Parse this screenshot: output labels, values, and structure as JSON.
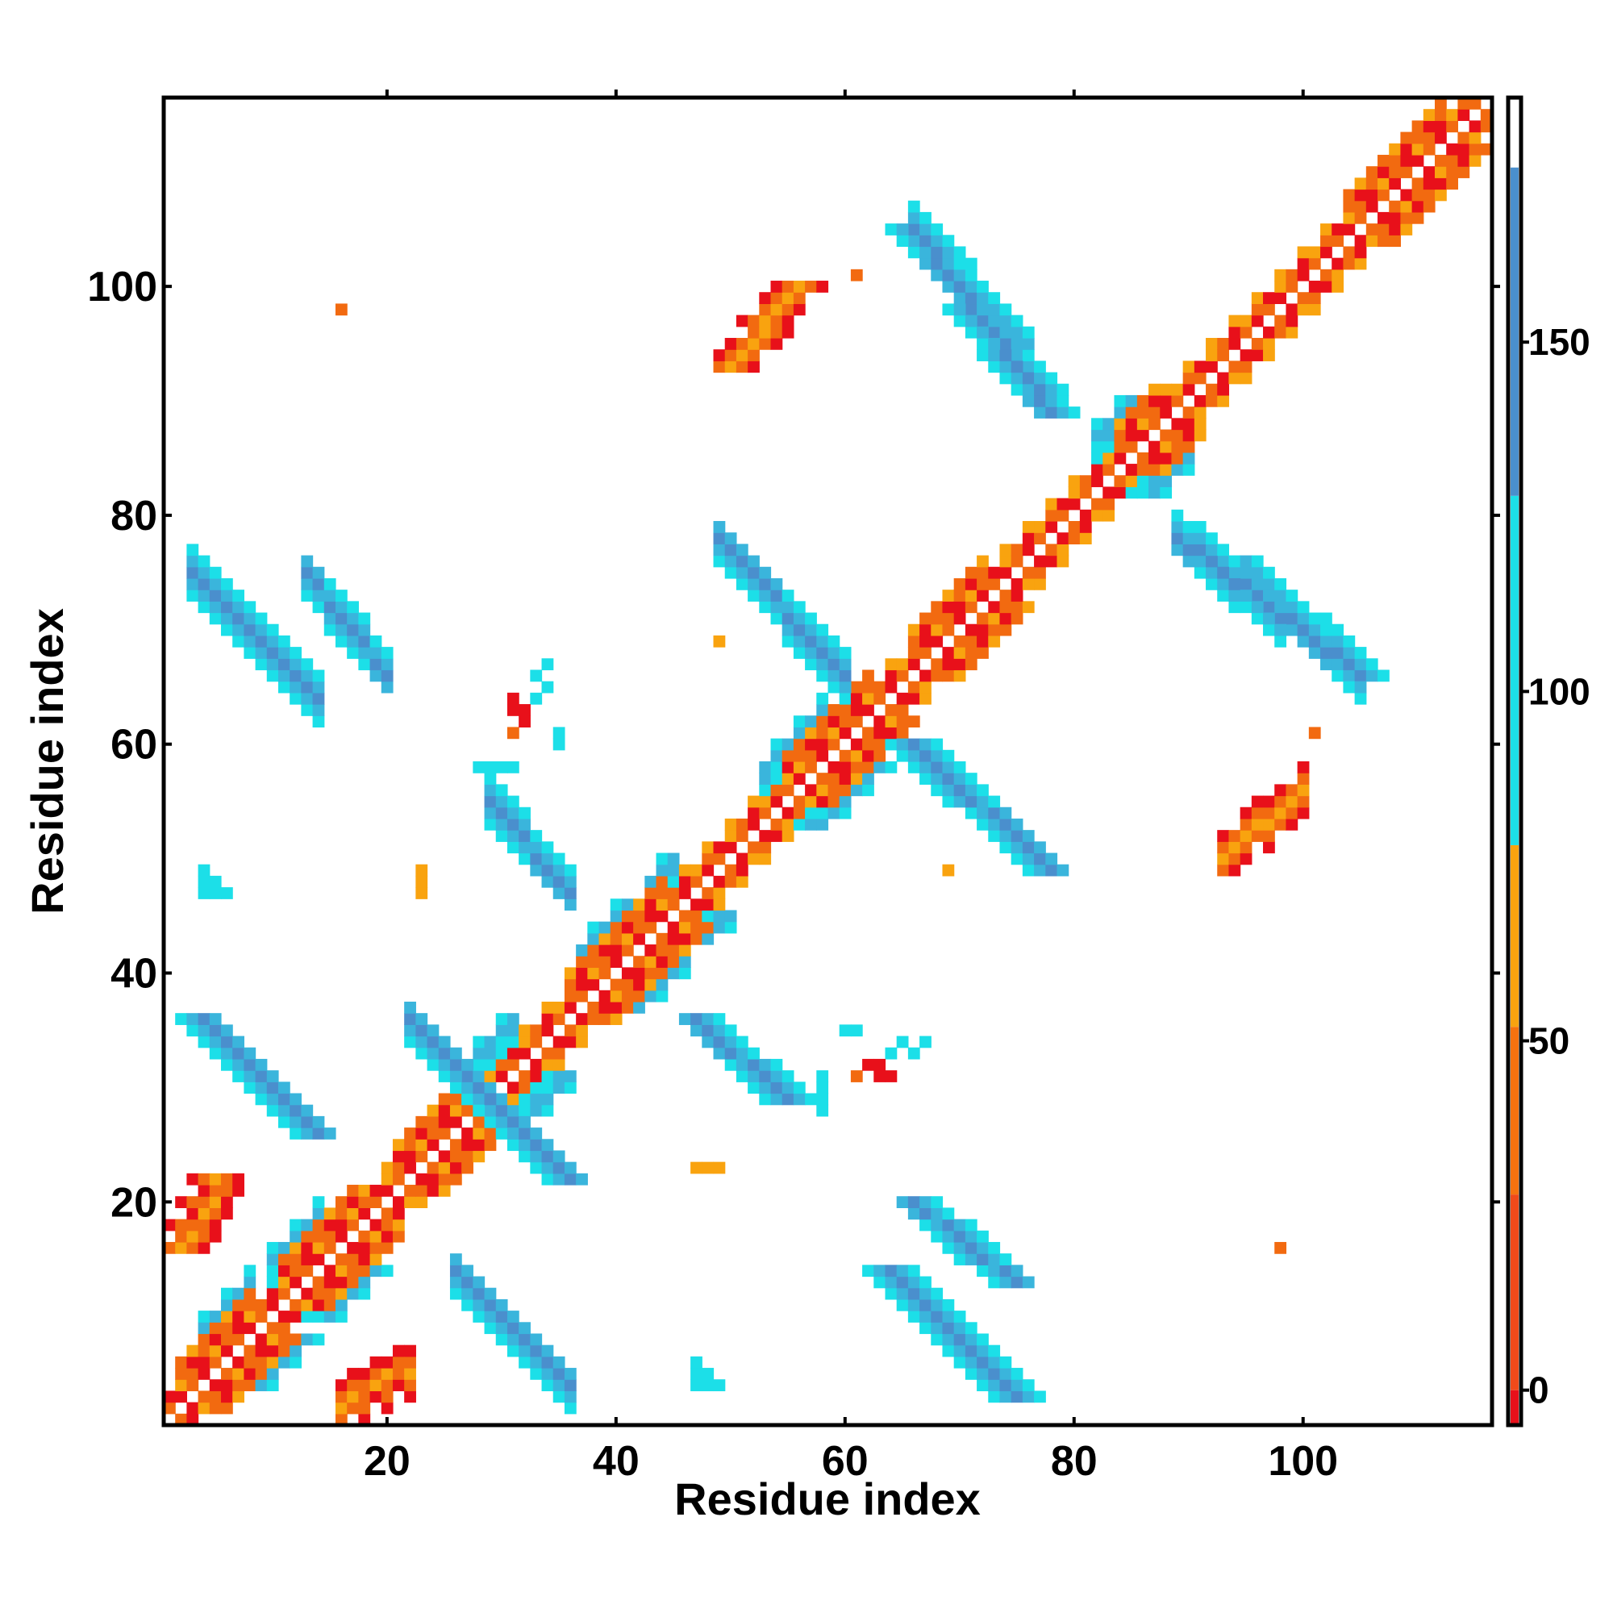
{
  "chart_data": {
    "type": "heatmap",
    "title": "",
    "xlabel": "Residue index",
    "ylabel": "Residue index",
    "xlim": [
      0.5,
      116.5
    ],
    "ylim": [
      0.5,
      116.5
    ],
    "x_ticks": [
      20,
      40,
      60,
      80,
      100
    ],
    "y_ticks": [
      20,
      40,
      60,
      80,
      100
    ],
    "grid": false,
    "legend": "colorbar-right",
    "colorbar": {
      "range": [
        -5,
        185
      ],
      "ticks": [
        0,
        50,
        100,
        150
      ],
      "bands": [
        {
          "from": -5,
          "to": 0,
          "color": "#e8101a"
        },
        {
          "from": 0,
          "to": 28,
          "color": "#f04a1a"
        },
        {
          "from": 28,
          "to": 52,
          "color": "#f6720f"
        },
        {
          "from": 52,
          "to": 78,
          "color": "#f9a30f"
        },
        {
          "from": 78,
          "to": 128,
          "color": "#1cdfe8"
        },
        {
          "from": 128,
          "to": 175,
          "color": "#4a8fcd"
        },
        {
          "from": 175,
          "to": 185,
          "color": "#ffffff"
        }
      ]
    },
    "category_colors": {
      "r": "#e8101a",
      "o": "#f26a10",
      "y": "#f9a30f",
      "c": "#1cdfe8",
      "t": "#3ab5dc",
      "b": "#4a8fcd"
    },
    "symmetric": true,
    "diagonal_band": {
      "offset1": "crosshatch of red/orange alternating with white",
      "helix_blocks": [
        [
          2,
          8
        ],
        [
          11,
          17
        ],
        [
          21,
          27
        ],
        [
          36,
          44
        ],
        [
          55,
          62
        ],
        [
          66,
          72
        ],
        [
          84,
          87
        ],
        [
          104,
          112
        ]
      ],
      "strand_blocks": [
        [
          4,
          8
        ],
        [
          10,
          14
        ],
        [
          28,
          31
        ],
        [
          37,
          41
        ],
        [
          43,
          45
        ],
        [
          53,
          58
        ],
        [
          82,
          85
        ]
      ]
    },
    "regions": [
      {
        "name": "sheet-3-14",
        "type": "antiparallel",
        "a": [
          3,
          14
        ],
        "b": [
          75,
          64
        ],
        "categories": "c,t,b"
      },
      {
        "name": "sheet-13-20",
        "type": "antiparallel",
        "a": [
          13,
          20
        ],
        "b": [
          75,
          66
        ],
        "categories": "c,t,b"
      },
      {
        "name": "sheet-26-36",
        "type": "antiparallel",
        "a": [
          26,
          36
        ],
        "b": [
          14,
          4
        ],
        "categories": "c,t,b"
      },
      {
        "name": "sheet-29-36",
        "type": "antiparallel",
        "a": [
          29,
          36
        ],
        "b": [
          55,
          47
        ],
        "categories": "c,t,b"
      },
      {
        "name": "sheet-22-29",
        "type": "antiparallel",
        "a": [
          22,
          29
        ],
        "b": [
          36,
          29
        ],
        "categories": "c,t,b"
      },
      {
        "name": "sheet-66-76",
        "type": "antiparallel",
        "a": [
          66,
          76
        ],
        "b": [
          105,
          94
        ],
        "categories": "c,t,b"
      },
      {
        "name": "sheet-49-60",
        "type": "antiparallel",
        "a": [
          49,
          60
        ],
        "b": [
          78,
          66
        ],
        "categories": "c,t,b"
      },
      {
        "name": "sheet-89-105",
        "type": "antiparallel",
        "a": [
          89,
          105
        ],
        "b": [
          78,
          66
        ],
        "categories": "c,t,b"
      },
      {
        "name": "patch-93-100",
        "type": "parallel",
        "a": [
          93,
          100
        ],
        "b": [
          50,
          56
        ],
        "categories": "r,o,y"
      },
      {
        "name": "patch-16-22",
        "type": "parallel",
        "a": [
          16,
          22
        ],
        "b": [
          2,
          5
        ],
        "categories": "r,o,y"
      },
      {
        "name": "patch-3-5",
        "type": "parallel",
        "a": [
          3,
          5
        ],
        "b": [
          17,
          20
        ],
        "categories": "r,o,y"
      }
    ],
    "scattered_cells": [
      [
        16,
        98,
        "o"
      ],
      [
        98,
        16,
        "o"
      ],
      [
        61,
        101,
        "o"
      ],
      [
        101,
        61,
        "o"
      ],
      [
        49,
        69,
        "y"
      ],
      [
        69,
        49,
        "y"
      ],
      [
        23,
        49,
        "y"
      ],
      [
        49,
        23,
        "y"
      ],
      [
        31,
        63,
        "r"
      ],
      [
        63,
        31,
        "r"
      ],
      [
        31,
        61,
        "o"
      ],
      [
        61,
        31,
        "o"
      ],
      [
        47,
        23,
        "y"
      ],
      [
        48,
        23,
        "y"
      ],
      [
        49,
        23,
        "y"
      ],
      [
        23,
        47,
        "y"
      ],
      [
        23,
        48,
        "y"
      ],
      [
        5,
        48,
        "c"
      ],
      [
        5,
        47,
        "c"
      ],
      [
        6,
        47,
        "c"
      ],
      [
        48,
        5,
        "c"
      ],
      [
        47,
        5,
        "c"
      ],
      [
        47,
        6,
        "c"
      ],
      [
        47,
        4,
        "c"
      ],
      [
        48,
        4,
        "c"
      ],
      [
        49,
        4,
        "c"
      ],
      [
        4,
        47,
        "c"
      ],
      [
        4,
        48,
        "c"
      ],
      [
        4,
        49,
        "c"
      ],
      [
        28,
        58,
        "c"
      ],
      [
        29,
        58,
        "c"
      ],
      [
        30,
        58,
        "c"
      ],
      [
        58,
        28,
        "c"
      ],
      [
        58,
        29,
        "c"
      ],
      [
        58,
        30,
        "c"
      ],
      [
        33,
        64,
        "c"
      ],
      [
        34,
        65,
        "c"
      ],
      [
        64,
        33,
        "c"
      ],
      [
        65,
        34,
        "c"
      ],
      [
        58,
        31,
        "c"
      ],
      [
        58,
        30,
        "c"
      ],
      [
        58,
        29,
        "c"
      ],
      [
        62,
        32,
        "r"
      ],
      [
        63,
        32,
        "r"
      ],
      [
        32,
        62,
        "r"
      ],
      [
        32,
        63,
        "r"
      ],
      [
        60,
        35,
        "c"
      ],
      [
        61,
        35,
        "c"
      ],
      [
        35,
        60,
        "c"
      ],
      [
        35,
        61,
        "c"
      ],
      [
        63,
        31,
        "r"
      ],
      [
        64,
        31,
        "r"
      ],
      [
        31,
        64,
        "r"
      ],
      [
        66,
        33,
        "c"
      ],
      [
        67,
        34,
        "c"
      ],
      [
        33,
        66,
        "c"
      ],
      [
        34,
        67,
        "c"
      ],
      [
        55,
        57,
        "y"
      ],
      [
        57,
        55,
        "y"
      ]
    ]
  }
}
